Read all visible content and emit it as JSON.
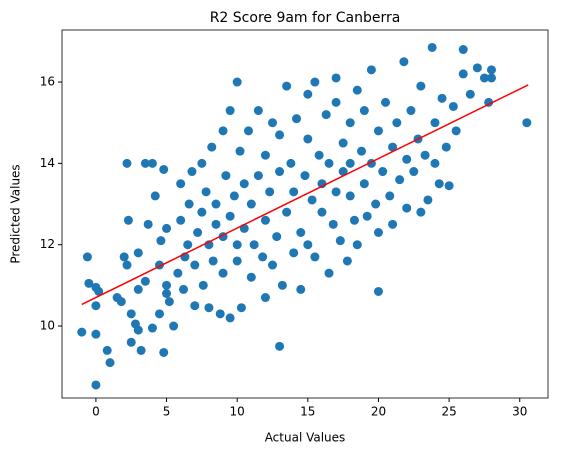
{
  "chart_data": {
    "type": "scatter",
    "title": "R2 Score 9am for Canberra",
    "x_label": "Actual Values",
    "y_label": "Predicted Values",
    "xlim": [
      -2.4,
      32.0
    ],
    "ylim": [
      8.23,
      17.28
    ],
    "xticks": [
      0,
      5,
      10,
      15,
      20,
      25,
      30
    ],
    "yticks": [
      10,
      12,
      14,
      16
    ],
    "points": {
      "color": "#1f77b4",
      "x": [
        -1,
        -0.6,
        -0.5,
        0,
        0.2,
        0,
        0,
        0,
        0.8,
        1,
        1.5,
        1.8,
        2,
        2.2,
        2.2,
        2.3,
        2.5,
        2.5,
        2.8,
        3,
        3,
        3,
        3.2,
        3.5,
        3.5,
        3.7,
        4,
        4,
        4.2,
        4.5,
        4.5,
        4.6,
        4.8,
        4.8,
        5,
        5,
        5.2,
        5,
        5.5,
        5.8,
        6,
        6,
        6.2,
        6.3,
        6.5,
        6.6,
        6.8,
        7,
        7,
        7.2,
        7.5,
        7.5,
        7.6,
        7.8,
        8,
        8,
        8.2,
        8.3,
        8.5,
        8.5,
        8.8,
        9,
        9,
        9,
        9.2,
        9.5,
        9.5,
        9.5,
        9.8,
        10,
        10,
        10,
        10.2,
        10.3,
        10.5,
        10.5,
        10.8,
        11,
        11,
        11.2,
        11.5,
        11.5,
        11.8,
        12,
        12,
        12,
        12.3,
        12.5,
        12.5,
        12.8,
        13,
        13,
        13,
        13.2,
        13.5,
        13.5,
        13.8,
        14,
        14,
        14.2,
        14.5,
        14.5,
        14.8,
        15,
        15,
        15,
        15.3,
        15.5,
        15.5,
        15.8,
        16,
        16,
        16.3,
        16.5,
        16.5,
        16.8,
        17,
        17,
        17,
        17.3,
        17.5,
        17.5,
        17.8,
        18,
        18,
        18,
        18.3,
        18.5,
        18.5,
        18.8,
        19,
        19,
        19.2,
        19.5,
        19.5,
        19.8,
        20,
        20,
        20,
        20.3,
        20.5,
        20.8,
        21,
        21,
        21.3,
        21.5,
        21.8,
        22,
        22,
        22.3,
        22.5,
        22.8,
        23,
        23,
        23.3,
        23.5,
        23.8,
        24,
        24,
        24.3,
        24.5,
        24.8,
        25,
        25.3,
        25.5,
        26,
        26,
        26.5,
        27,
        27.5,
        27.8,
        28,
        28,
        30.5
      ],
      "y": [
        9.85,
        11.7,
        11.05,
        10.95,
        10.85,
        10.5,
        9.8,
        8.55,
        9.4,
        9.1,
        10.7,
        10.6,
        11.7,
        11.5,
        14.0,
        12.6,
        9.6,
        10.3,
        10.05,
        11.8,
        10.9,
        9.9,
        9.4,
        14.0,
        11.1,
        12.5,
        14.0,
        9.95,
        13.2,
        11.5,
        10.3,
        12.1,
        13.85,
        9.35,
        11.0,
        10.8,
        10.6,
        12.4,
        10.0,
        11.3,
        12.6,
        13.5,
        10.9,
        11.7,
        12.0,
        13.0,
        13.8,
        11.5,
        10.5,
        12.3,
        12.8,
        14.0,
        11.0,
        13.3,
        12.0,
        10.45,
        14.4,
        11.6,
        13.0,
        12.5,
        10.3,
        14.8,
        12.2,
        11.3,
        13.7,
        12.7,
        15.3,
        10.2,
        13.2,
        16.0,
        12.0,
        11.6,
        14.3,
        10.45,
        13.5,
        12.4,
        14.8,
        11.2,
        13.0,
        12.0,
        15.3,
        13.7,
        11.7,
        12.6,
        14.2,
        10.7,
        13.3,
        15.0,
        11.5,
        12.2,
        14.7,
        9.5,
        13.8,
        11.0,
        15.9,
        12.8,
        14.0,
        11.8,
        13.3,
        15.1,
        12.3,
        10.9,
        13.7,
        14.6,
        12.0,
        15.7,
        13.1,
        16.0,
        11.7,
        14.2,
        12.8,
        13.5,
        15.2,
        11.3,
        14.0,
        12.5,
        15.5,
        13.3,
        16.1,
        12.1,
        14.5,
        13.8,
        11.6,
        15.0,
        13.2,
        14.0,
        12.6,
        15.8,
        12.0,
        14.3,
        13.5,
        15.3,
        12.7,
        14.0,
        16.3,
        13.0,
        10.85,
        14.8,
        12.3,
        13.8,
        15.5,
        13.2,
        14.4,
        12.5,
        15.0,
        13.6,
        16.5,
        14.1,
        12.9,
        15.3,
        13.8,
        14.6,
        12.8,
        15.9,
        14.2,
        13.1,
        16.85,
        15.0,
        14.0,
        13.5,
        15.6,
        14.4,
        13.45,
        15.4,
        14.8,
        16.8,
        16.2,
        15.7,
        16.35,
        16.1,
        15.5,
        16.3,
        16.1,
        15.0
      ]
    },
    "fit_line": {
      "color": "#ff0000",
      "x": [
        -1,
        30.6
      ],
      "y": [
        10.53,
        15.93
      ]
    }
  }
}
